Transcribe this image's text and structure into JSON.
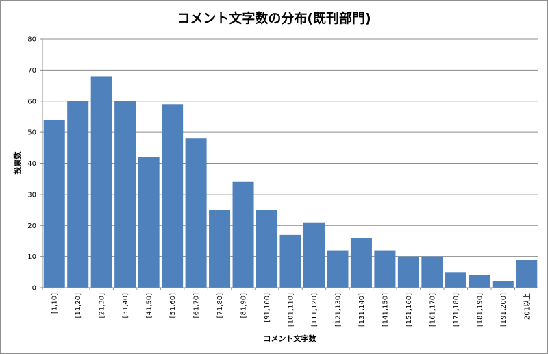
{
  "chart_data": {
    "type": "bar",
    "title": "コメント文字数の分布(既刊部門)",
    "xlabel": "コメント文字数",
    "ylabel": "投票数",
    "ylim": [
      0,
      80
    ],
    "yticks": [
      0,
      10,
      20,
      30,
      40,
      50,
      60,
      70,
      80
    ],
    "grid": true,
    "legend": "none",
    "bar_color": "#4f81bd",
    "categories": [
      "[1,10]",
      "[11,20]",
      "[21,30]",
      "[31,40]",
      "[41,50]",
      "[51,60]",
      "[61,70]",
      "[71,80]",
      "[81,90]",
      "[91,100]",
      "[101,110]",
      "[111,120]",
      "[121,130]",
      "[131,140]",
      "[141,150]",
      "[151,160]",
      "[161,170]",
      "[171,180]",
      "[181,190]",
      "[191,200]",
      "201以上"
    ],
    "values": [
      54,
      60,
      68,
      60,
      42,
      59,
      48,
      25,
      34,
      25,
      17,
      21,
      12,
      16,
      12,
      10,
      10,
      5,
      4,
      2,
      9
    ]
  }
}
